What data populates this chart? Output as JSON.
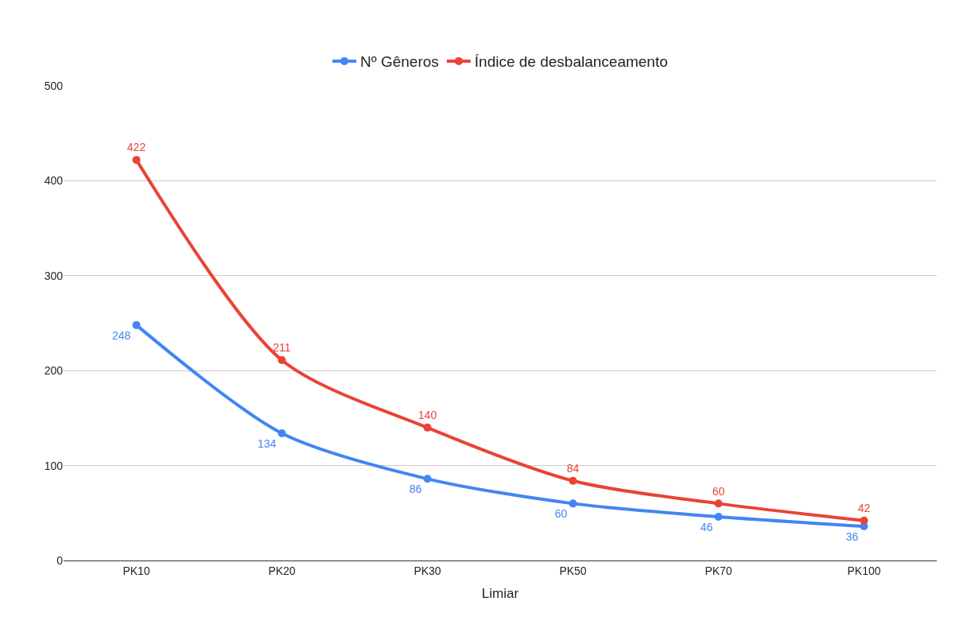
{
  "chart_data": {
    "type": "line",
    "xlabel": "Limiar",
    "categories": [
      "PK10",
      "PK20",
      "PK30",
      "PK50",
      "PK70",
      "PK100"
    ],
    "series": [
      {
        "name": "Nº Gêneros",
        "color": "#4285f4",
        "values": [
          248,
          134,
          86,
          60,
          46,
          36
        ]
      },
      {
        "name": "Índice de desbalanceamento",
        "color": "#ea4335",
        "values": [
          422,
          211,
          140,
          84,
          60,
          42
        ]
      }
    ],
    "ylim": [
      0,
      500
    ],
    "yticks": [
      0,
      100,
      200,
      300,
      400,
      500
    ],
    "grid": "y",
    "legend": "top",
    "marker": "circle",
    "data_labels": true
  }
}
